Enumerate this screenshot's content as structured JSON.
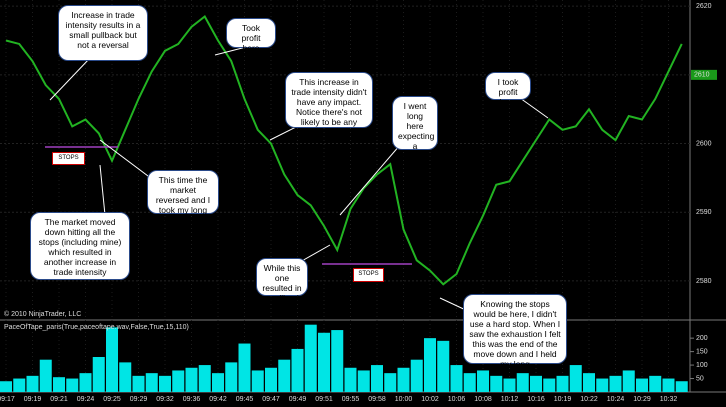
{
  "chart_data": [
    {
      "type": "line",
      "copyright": "© 2010 NinjaTrader, LLC",
      "categories": [
        "09:17",
        null,
        "09:19",
        null,
        "09:21",
        null,
        "09:24",
        null,
        "09:25",
        null,
        "09:29",
        null,
        "09:32",
        null,
        "09:36",
        null,
        "09:42",
        null,
        "09:45",
        null,
        "09:47",
        null,
        "09:49",
        null,
        "09:51",
        null,
        "09:55",
        null,
        "09:58",
        null,
        "10:00",
        null,
        "10:02",
        null,
        "10:06",
        null,
        "10:08",
        null,
        "10:12",
        null,
        "10:16",
        null,
        "10:19",
        null,
        "10:22",
        null,
        "10:24",
        null,
        "10:29",
        null,
        "10:32",
        null
      ],
      "values": [
        2615,
        2614.5,
        2612,
        2608.5,
        2606.5,
        2602.5,
        2603.5,
        2601.5,
        2597.5,
        2602,
        2606.5,
        2610.5,
        2613.5,
        2614.5,
        2617,
        2618.5,
        2615,
        2612,
        2606.5,
        2602,
        2600,
        2595.5,
        2592.5,
        2591,
        2588,
        2584.5,
        2590.5,
        2593.5,
        2595.5,
        2597,
        2587.5,
        2583,
        2581.5,
        2579.5,
        2581,
        2585.5,
        2589.5,
        2594,
        2594.5,
        2597.5,
        2600.5,
        2603.5,
        2602,
        2602.5,
        2605,
        2602,
        2600.5,
        2604,
        2603.5,
        2606.5,
        2610.5,
        2614.5
      ],
      "color": "#22b322",
      "last_price": 2610,
      "ylim": [
        2574.6,
        2620.9
      ],
      "yticks": [
        2580,
        2590,
        2600,
        2610,
        2620
      ],
      "grid": true,
      "stops_labels": [
        "STOPS",
        "STOPS"
      ],
      "annotations": [
        "Increase in trade intensity results in a small pullback but not a reversal",
        "Took profit here",
        "This increase in trade intensity didn't have any impact.  Notice there's not likely to be any stops here.",
        "I went long here expecting a reversal",
        "I took profit here",
        "This time the market reversed and I took my long trade again",
        "The market moved down hitting all the stops (including mine) which resulted in another increase in trade intensity",
        "While this one resulted in a pullback",
        "Knowing the stops would be here, I didn't use a hard stop.  When I saw the exhaustion I felt this was the end of the move down and I held my long"
      ]
    },
    {
      "type": "bar",
      "title": "PaceOfTape_paris(True,paceoftape.wav,False,True,15,110)",
      "values": [
        40,
        50,
        60,
        120,
        55,
        50,
        70,
        130,
        240,
        110,
        60,
        70,
        60,
        80,
        90,
        100,
        70,
        110,
        180,
        80,
        90,
        120,
        160,
        250,
        220,
        230,
        90,
        80,
        100,
        70,
        90,
        120,
        200,
        190,
        100,
        70,
        80,
        60,
        50,
        70,
        60,
        50,
        60,
        100,
        70,
        50,
        60,
        80,
        50,
        60,
        50,
        40
      ],
      "color": "#00e5e5",
      "ylim": [
        0,
        260
      ],
      "yticks": [
        50,
        100,
        150,
        200
      ]
    }
  ]
}
